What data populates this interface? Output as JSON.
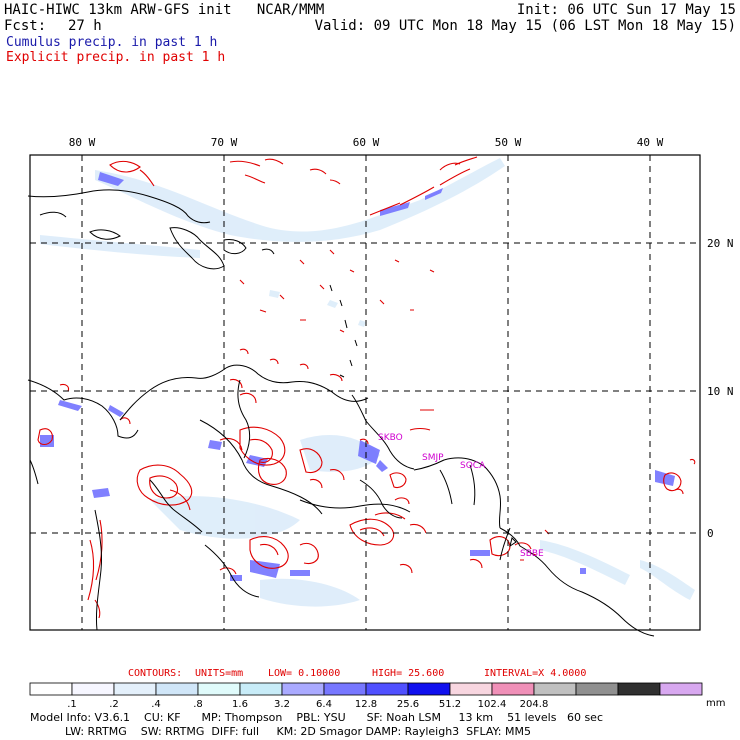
{
  "header": {
    "model_line": "HAIC-HIWC 13km ARW-GFS init   NCAR/MMM",
    "init_line": "Init: 06 UTC Sun 17 May 15",
    "fcst_label": "Fcst:",
    "fcst_value": "27 h",
    "valid_line": "Valid: 09 UTC Mon 18 May 15 (06 LST Mon 18 May 15)",
    "cumulus_legend": "Cumulus precip. in past 1 h",
    "explicit_legend": "Explicit precip. in past 1 h"
  },
  "colors": {
    "cumulus": "#1a1aaa",
    "explicit": "#e00000",
    "magenta_label": "#d000d0"
  },
  "map": {
    "lon_labels": [
      "80 W",
      "70 W",
      "60 W",
      "50 W",
      "40 W"
    ],
    "lat_labels": [
      "20 N",
      "10 N",
      "0"
    ],
    "station_labels": [
      "SKBO",
      "SMJP",
      "SOCA",
      "SBBE"
    ]
  },
  "contours_line": {
    "contours": "CONTOURS:",
    "units": "UNITS=mm",
    "low": "LOW= 0.10000",
    "high": "HIGH=  25.600",
    "interval": "INTERVAL=X  4.0000"
  },
  "colorbar": {
    "colors": [
      "#ffffff",
      "#f6f6ff",
      "#e4f0fb",
      "#d0e6f8",
      "#e0fbfb",
      "#c8ecf8",
      "#aaaaff",
      "#7777ff",
      "#5050ff",
      "#1010ee",
      "#f8d6e0",
      "#f090b8",
      "#c0c0c0",
      "#909090",
      "#303030",
      "#d8a8f0"
    ],
    "labels": [
      ".1",
      ".2",
      ".4",
      ".8",
      "1.6",
      "3.2",
      "6.4",
      "12.8",
      "25.6",
      "51.2",
      "102.4",
      "204.8"
    ],
    "unit": "mm"
  },
  "footer": {
    "line1": "Model Info: V3.6.1    CU: KF      MP: Thompson    PBL: YSU      SF: Noah LSM     13 km    51 levels   60 sec",
    "line2": "          LW: RRTMG    SW: RRTMG  DIFF: full     KM: 2D Smagor DAMP: Rayleigh3  SFLAY: MM5"
  }
}
